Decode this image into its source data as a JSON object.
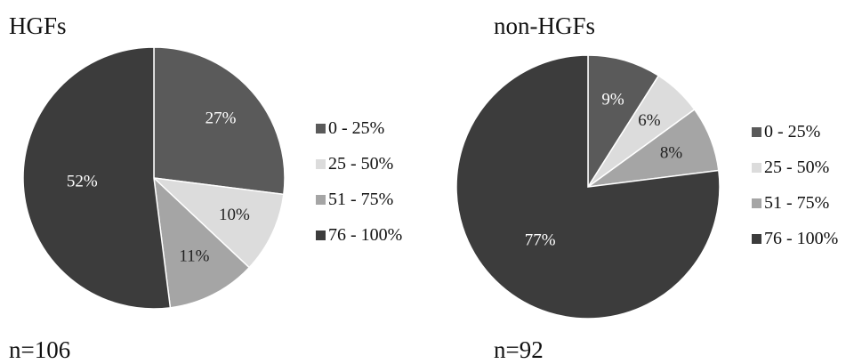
{
  "colors": {
    "0 - 25%": "#5a5a5a",
    "25 - 50%": "#dcdcdc",
    "51 - 75%": "#a5a5a5",
    "76 - 100%": "#3c3c3c",
    "slice_border": "#ffffff"
  },
  "chart_data": [
    {
      "type": "pie",
      "title": "HGFs",
      "n_label": "n=106",
      "categories": [
        "0 - 25%",
        "25 - 50%",
        "51 - 75%",
        "76 - 100%"
      ],
      "values": [
        27,
        10,
        11,
        52
      ],
      "labels": [
        "27%",
        "10%",
        "11%",
        "52%"
      ],
      "legend": [
        "0 - 25%",
        "25 - 50%",
        "51 - 75%",
        "76 - 100%"
      ],
      "legend_position": "right"
    },
    {
      "type": "pie",
      "title": "non-HGFs",
      "n_label": "n=92",
      "categories": [
        "0 - 25%",
        "25 - 50%",
        "51 - 75%",
        "76 - 100%"
      ],
      "values": [
        9,
        6,
        8,
        77
      ],
      "labels": [
        "9%",
        "6%",
        "8%",
        "77%"
      ],
      "legend": [
        "0 - 25%",
        "25 - 50%",
        "51 - 75%",
        "76 - 100%"
      ],
      "legend_position": "right"
    }
  ]
}
